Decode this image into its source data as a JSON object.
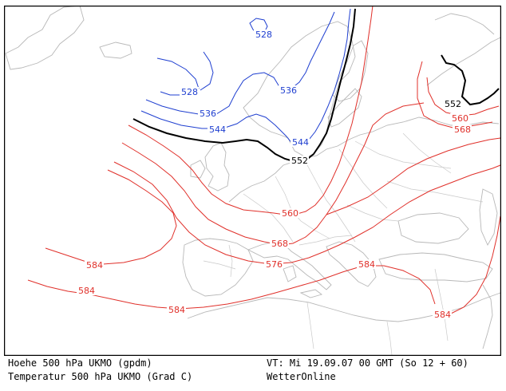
{
  "map": {
    "colors": {
      "temperature_lines": "#e0302a",
      "low_height_lines": "#1f3fd0",
      "height_552_line": "#000000",
      "coastline": "#b8b8b8",
      "frame": "#000000"
    },
    "contour_labels": {
      "blue_528_north": "528",
      "blue_528_west": "528",
      "blue_536_west": "536",
      "blue_536_scand": "536",
      "blue_544_west": "544",
      "blue_544_baltic": "544",
      "black_552_center": "552",
      "black_552_russia": "552",
      "red_560_russia": "560",
      "red_568_russia": "568",
      "red_560_center": "560",
      "red_568_center": "568",
      "red_576_alps": "576",
      "red_584_atlantic": "584",
      "red_584_southwest": "584",
      "red_584_spain": "584",
      "red_584_greece": "584",
      "red_584_east": "584"
    }
  },
  "footer": {
    "line1_left": "Hoehe 500 hPa UKMO (gpdm)",
    "line2_left": "Temperatur 500 hPa UKMO (Grad C)",
    "line1_right": "VT: Mi 19.09.07 00 GMT (So 12 + 60)",
    "line2_right": "WetterOnline"
  }
}
